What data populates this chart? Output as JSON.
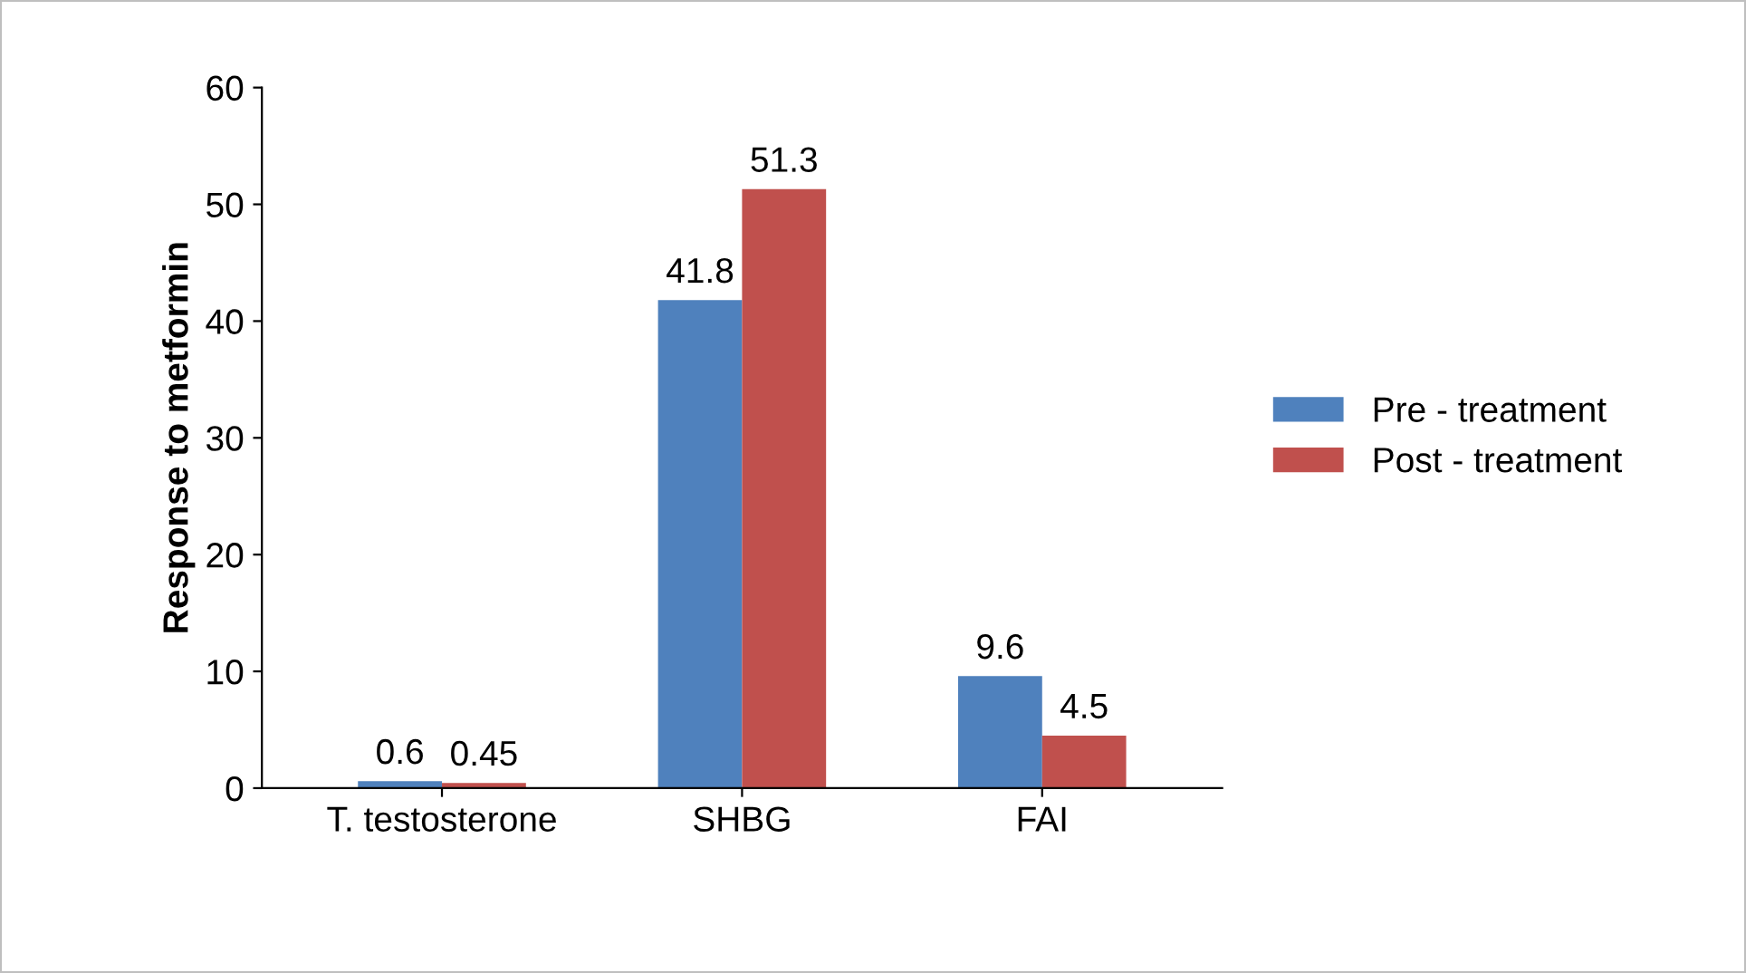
{
  "chart_data": {
    "type": "bar",
    "ylabel": "Response to metformin",
    "categories": [
      "T. testosterone",
      "SHBG",
      "FAI"
    ],
    "series": [
      {
        "name": "Pre - treatment",
        "color": "#4f81bd",
        "values": [
          0.6,
          41.8,
          9.6
        ]
      },
      {
        "name": "Post - treatment",
        "color": "#c0504d",
        "values": [
          0.45,
          51.3,
          4.5
        ]
      }
    ],
    "ylim": [
      0,
      60
    ],
    "yticks": [
      0,
      10,
      20,
      30,
      40,
      50,
      60
    ],
    "data_labels": true,
    "grid": false,
    "legend": "right"
  }
}
